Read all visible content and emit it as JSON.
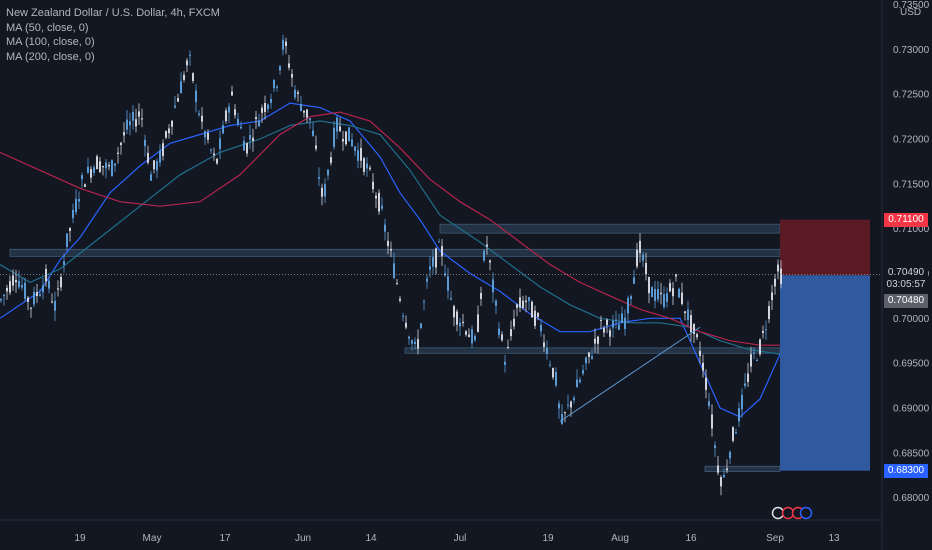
{
  "legend": {
    "symbol": "New Zealand Dollar / U.S. Dollar, 4h, FXCM",
    "ma50": "MA (50, close, 0)",
    "ma100": "MA (100, close, 0)",
    "ma200": "MA (200, close, 0)"
  },
  "currency": "USD",
  "price_tags": {
    "stop": "0.71100",
    "current": "0.70490",
    "countdown": "03:05:57",
    "entry": "0.70480",
    "target": "0.68300"
  },
  "colors": {
    "background": "#131722",
    "candle": "#b2b5be",
    "ma50": "#2962ff",
    "ma100": "#1f6f8b",
    "ma200": "#b5244c",
    "zone": "#2a3d52",
    "stop_zone": "#5c1a24",
    "target_zone": "#2f5aa0",
    "tag_red": "#f23645",
    "tag_blue": "#2962ff"
  },
  "chart_data": {
    "type": "line",
    "title": "New Zealand Dollar / U.S. Dollar, 4h, FXCM",
    "ylabel": "USD",
    "ylim": [
      0.6775,
      0.7355
    ],
    "yticks": [
      "0.73500",
      "0.73000",
      "0.72500",
      "0.72000",
      "0.71500",
      "0.71000",
      "0.70500",
      "0.70000",
      "0.69500",
      "0.69000",
      "0.68500",
      "0.68000"
    ],
    "xticks": [
      "19",
      "May",
      "17",
      "Jun",
      "14",
      "Jul",
      "19",
      "Aug",
      "16",
      "Sep",
      "13"
    ],
    "series": [
      {
        "name": "MA (50, close, 0)",
        "x": [
          0,
          40,
          60,
          80,
          110,
          140,
          170,
          200,
          230,
          260,
          290,
          320,
          350,
          380,
          400,
          420,
          440,
          470,
          500,
          530,
          560,
          590,
          620,
          650,
          680,
          700,
          720,
          740,
          760,
          770,
          780
        ],
        "values": [
          0.7,
          0.703,
          0.7065,
          0.709,
          0.714,
          0.717,
          0.7195,
          0.7205,
          0.7215,
          0.722,
          0.724,
          0.7235,
          0.722,
          0.718,
          0.714,
          0.711,
          0.7075,
          0.705,
          0.703,
          0.7005,
          0.6985,
          0.6985,
          0.6995,
          0.7,
          0.7,
          0.695,
          0.69,
          0.689,
          0.691,
          0.6935,
          0.696
        ]
      },
      {
        "name": "MA (100, close, 0)",
        "x": [
          0,
          30,
          60,
          100,
          140,
          180,
          220,
          260,
          290,
          320,
          350,
          380,
          410,
          440,
          480,
          510,
          540,
          570,
          600,
          630,
          660,
          690,
          720,
          750,
          780
        ],
        "values": [
          0.706,
          0.704,
          0.7055,
          0.709,
          0.7125,
          0.716,
          0.7185,
          0.72,
          0.7215,
          0.722,
          0.7215,
          0.7205,
          0.7165,
          0.7115,
          0.7085,
          0.706,
          0.7035,
          0.7015,
          0.7,
          0.6995,
          0.6995,
          0.699,
          0.6975,
          0.6965,
          0.696
        ]
      },
      {
        "name": "MA (200, close, 0)",
        "x": [
          0,
          40,
          80,
          120,
          160,
          200,
          240,
          280,
          310,
          340,
          370,
          400,
          430,
          460,
          490,
          520,
          550,
          580,
          610,
          640,
          670,
          700,
          730,
          760,
          780
        ],
        "values": [
          0.7185,
          0.7165,
          0.7145,
          0.713,
          0.7125,
          0.713,
          0.716,
          0.7205,
          0.7225,
          0.723,
          0.722,
          0.719,
          0.7155,
          0.713,
          0.711,
          0.7085,
          0.706,
          0.704,
          0.7025,
          0.701,
          0.7,
          0.6985,
          0.6975,
          0.697,
          0.697
        ]
      },
      {
        "name": "NZDUSD close",
        "x": [
          0,
          15,
          30,
          45,
          55,
          65,
          80,
          95,
          110,
          125,
          140,
          150,
          160,
          175,
          188,
          200,
          215,
          230,
          245,
          260,
          275,
          283,
          295,
          310,
          322,
          335,
          350,
          365,
          378,
          390,
          402,
          415,
          428,
          440,
          452,
          465,
          475,
          485,
          495,
          505,
          515,
          525,
          540,
          555,
          560,
          575,
          590,
          600,
          615,
          625,
          638,
          650,
          662,
          675,
          688,
          700,
          708,
          716,
          722,
          730,
          740,
          750,
          760,
          768,
          775,
          780
        ],
        "values": [
          0.702,
          0.705,
          0.7015,
          0.7045,
          0.701,
          0.708,
          0.715,
          0.7175,
          0.7165,
          0.721,
          0.723,
          0.716,
          0.718,
          0.724,
          0.729,
          0.722,
          0.717,
          0.725,
          0.719,
          0.723,
          0.726,
          0.731,
          0.725,
          0.722,
          0.713,
          0.7215,
          0.72,
          0.717,
          0.713,
          0.707,
          0.701,
          0.696,
          0.705,
          0.708,
          0.701,
          0.699,
          0.697,
          0.709,
          0.701,
          0.695,
          0.701,
          0.702,
          0.699,
          0.693,
          0.688,
          0.692,
          0.696,
          0.699,
          0.699,
          0.7,
          0.708,
          0.703,
          0.702,
          0.704,
          0.7,
          0.696,
          0.691,
          0.684,
          0.6815,
          0.686,
          0.69,
          0.695,
          0.697,
          0.701,
          0.705,
          0.7049
        ]
      }
    ],
    "horizontal_zones": [
      {
        "from": 0.7105,
        "to": 0.7095
      },
      {
        "from": 0.7077,
        "to": 0.7069
      },
      {
        "from": 0.6967,
        "to": 0.6961
      },
      {
        "from": 0.6835,
        "to": 0.6829
      }
    ],
    "trendline": {
      "from": [
        560,
        0.6885
      ],
      "to": [
        700,
        0.699
      ]
    },
    "current_price": 0.7049,
    "position": {
      "type": "short",
      "entry": 0.7048,
      "stop": 0.711,
      "target": 0.683
    },
    "grid": false,
    "legend_position": "top-left"
  }
}
